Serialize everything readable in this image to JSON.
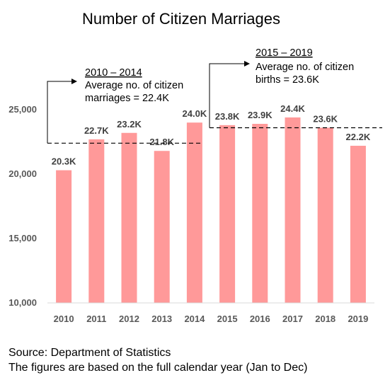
{
  "chart_data": {
    "type": "bar",
    "title": "Number of Citizen Marriages",
    "categories": [
      "2010",
      "2011",
      "2012",
      "2013",
      "2014",
      "2015",
      "2016",
      "2017",
      "2018",
      "2019"
    ],
    "values": [
      20300,
      22700,
      23200,
      21800,
      24000,
      23800,
      23900,
      24400,
      23600,
      22200
    ],
    "data_labels": [
      "20.3K",
      "22.7K",
      "23.2K",
      "21.8K",
      "24.0K",
      "23.8K",
      "23.9K",
      "24.4K",
      "23.6K",
      "22.2K"
    ],
    "y_ticks": [
      10000,
      15000,
      20000,
      25000
    ],
    "y_tick_labels": [
      "10,000",
      "15,000",
      "20,000",
      "25,000"
    ],
    "ylim": [
      10000,
      28000
    ],
    "bar_color": "#ff9999",
    "xlabel": "",
    "ylabel": "",
    "grid": false,
    "annotations": [
      {
        "title": "2010 – 2014",
        "lines": [
          "Average no. of citizen",
          "marriages = 22.4K"
        ],
        "average": 22400,
        "span": [
          "2010",
          "2014"
        ]
      },
      {
        "title": "2015 – 2019",
        "lines": [
          "Average no. of citizen",
          "births = 23.6K"
        ],
        "average": 23600,
        "span": [
          "2015",
          "2019"
        ]
      }
    ]
  },
  "source": {
    "line1": "Source: Department of Statistics",
    "line2": "The figures are based on the full calendar year (Jan to Dec)"
  }
}
